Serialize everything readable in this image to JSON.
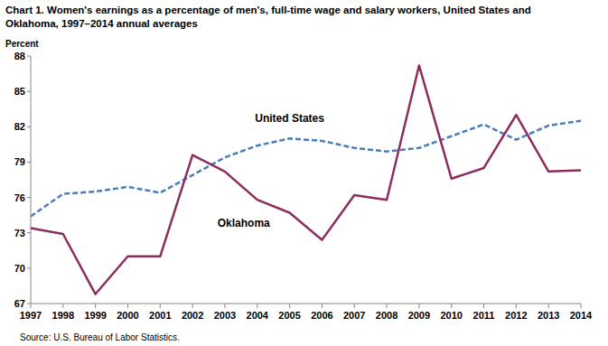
{
  "chart_data": {
    "type": "line",
    "title": "Chart 1. Women's earnings as a percentage of men's, full-time wage and salary workers, United States and Oklahoma, 1997–2014  annual averages",
    "y_label": "Percent",
    "source": "Source: U.S. Bureau of Labor Statistics.",
    "x": [
      1997,
      1998,
      1999,
      2000,
      2001,
      2002,
      2003,
      2004,
      2005,
      2006,
      2007,
      2008,
      2009,
      2010,
      2011,
      2012,
      2013,
      2014
    ],
    "xlim": [
      1997,
      2014
    ],
    "xticks": [
      1997,
      1998,
      1999,
      2000,
      2001,
      2002,
      2003,
      2004,
      2005,
      2006,
      2007,
      2008,
      2009,
      2010,
      2011,
      2012,
      2013,
      2014
    ],
    "ylim": [
      67,
      88
    ],
    "yticks": [
      67,
      70,
      73,
      76,
      79,
      82,
      85,
      88
    ],
    "grid": false,
    "series": [
      {
        "name": "United States",
        "color": "#4a7ebb",
        "line_style": "dashed",
        "values": [
          74.4,
          76.3,
          76.5,
          76.9,
          76.4,
          77.9,
          79.4,
          80.4,
          81.0,
          80.8,
          80.2,
          79.9,
          80.2,
          81.2,
          82.2,
          80.9,
          82.1,
          82.5
        ]
      },
      {
        "name": "Oklahoma",
        "color": "#8c2d5e",
        "line_style": "solid",
        "values": [
          73.4,
          72.9,
          67.8,
          71.0,
          71.0,
          79.6,
          78.2,
          75.8,
          74.7,
          72.4,
          76.2,
          75.8,
          87.2,
          77.6,
          78.5,
          83.0,
          78.2,
          78.3
        ]
      }
    ]
  }
}
